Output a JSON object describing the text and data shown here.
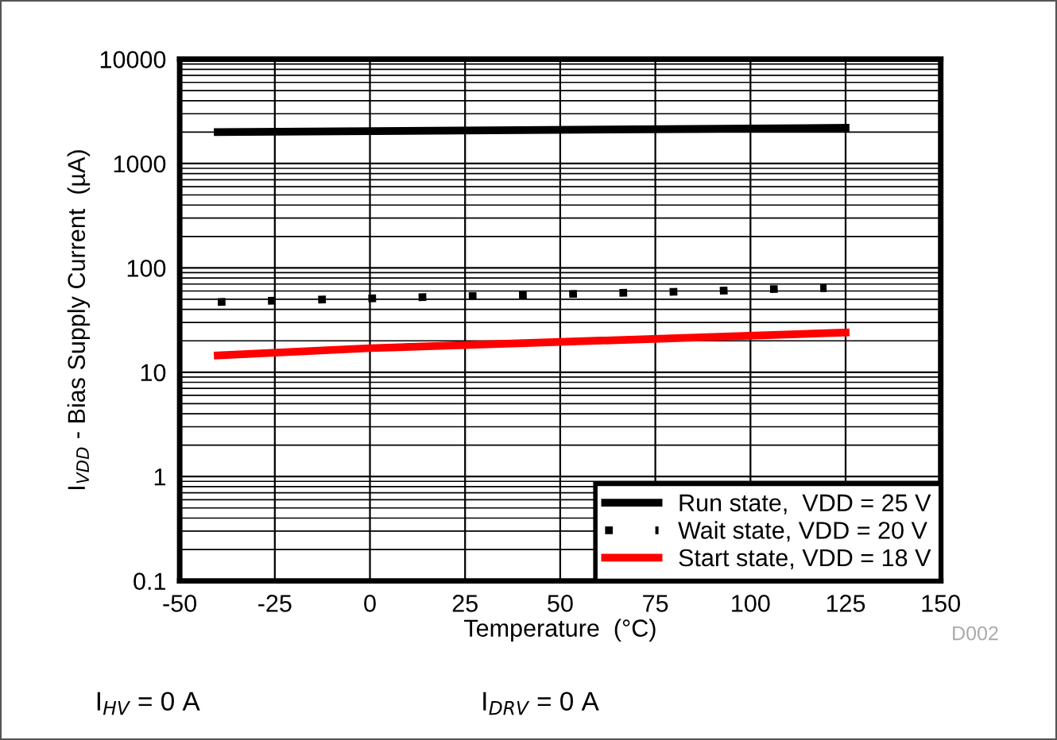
{
  "chart_data": {
    "type": "line",
    "xlabel": "Temperature  (°C)",
    "ylabel": "I$_{VDD}$ - Bias Supply Current  (µA)",
    "series": [
      {
        "name": "Run state,  VDD = 25 V",
        "color": "#000000",
        "line_style": "solid",
        "x": [
          -40,
          125
        ],
        "values": [
          2000,
          2200
        ]
      },
      {
        "name": "Wait state, VDD = 20 V",
        "color": "#000000",
        "line_style": "dotted",
        "x": [
          -40,
          -30,
          -20,
          -10,
          0,
          10,
          20,
          30,
          40,
          50,
          60,
          70,
          80,
          90,
          100,
          110,
          120
        ],
        "values": [
          47,
          48,
          49,
          50,
          51,
          52,
          53,
          54,
          55,
          56,
          57,
          58,
          59,
          60,
          62,
          63,
          64
        ]
      },
      {
        "name": "Start state, VDD = 18 V",
        "color": "#ff0000",
        "line_style": "solid",
        "x": [
          -40,
          0,
          50,
          125
        ],
        "values": [
          14.5,
          17,
          19.5,
          24
        ]
      }
    ],
    "log": "y",
    "xlim": [
      -50,
      150
    ],
    "xticks": [
      -50,
      -25,
      0,
      25,
      50,
      75,
      100,
      125,
      150
    ],
    "ylim": [
      0.1,
      10000
    ],
    "yticks": [
      0.1,
      1,
      10,
      100,
      1000,
      10000
    ],
    "grid": true,
    "legend": "bottom right",
    "annotations": [
      "D002",
      "I$_{HV}$ = 0 A",
      "I$_{DRV}$ = 0 A"
    ]
  }
}
